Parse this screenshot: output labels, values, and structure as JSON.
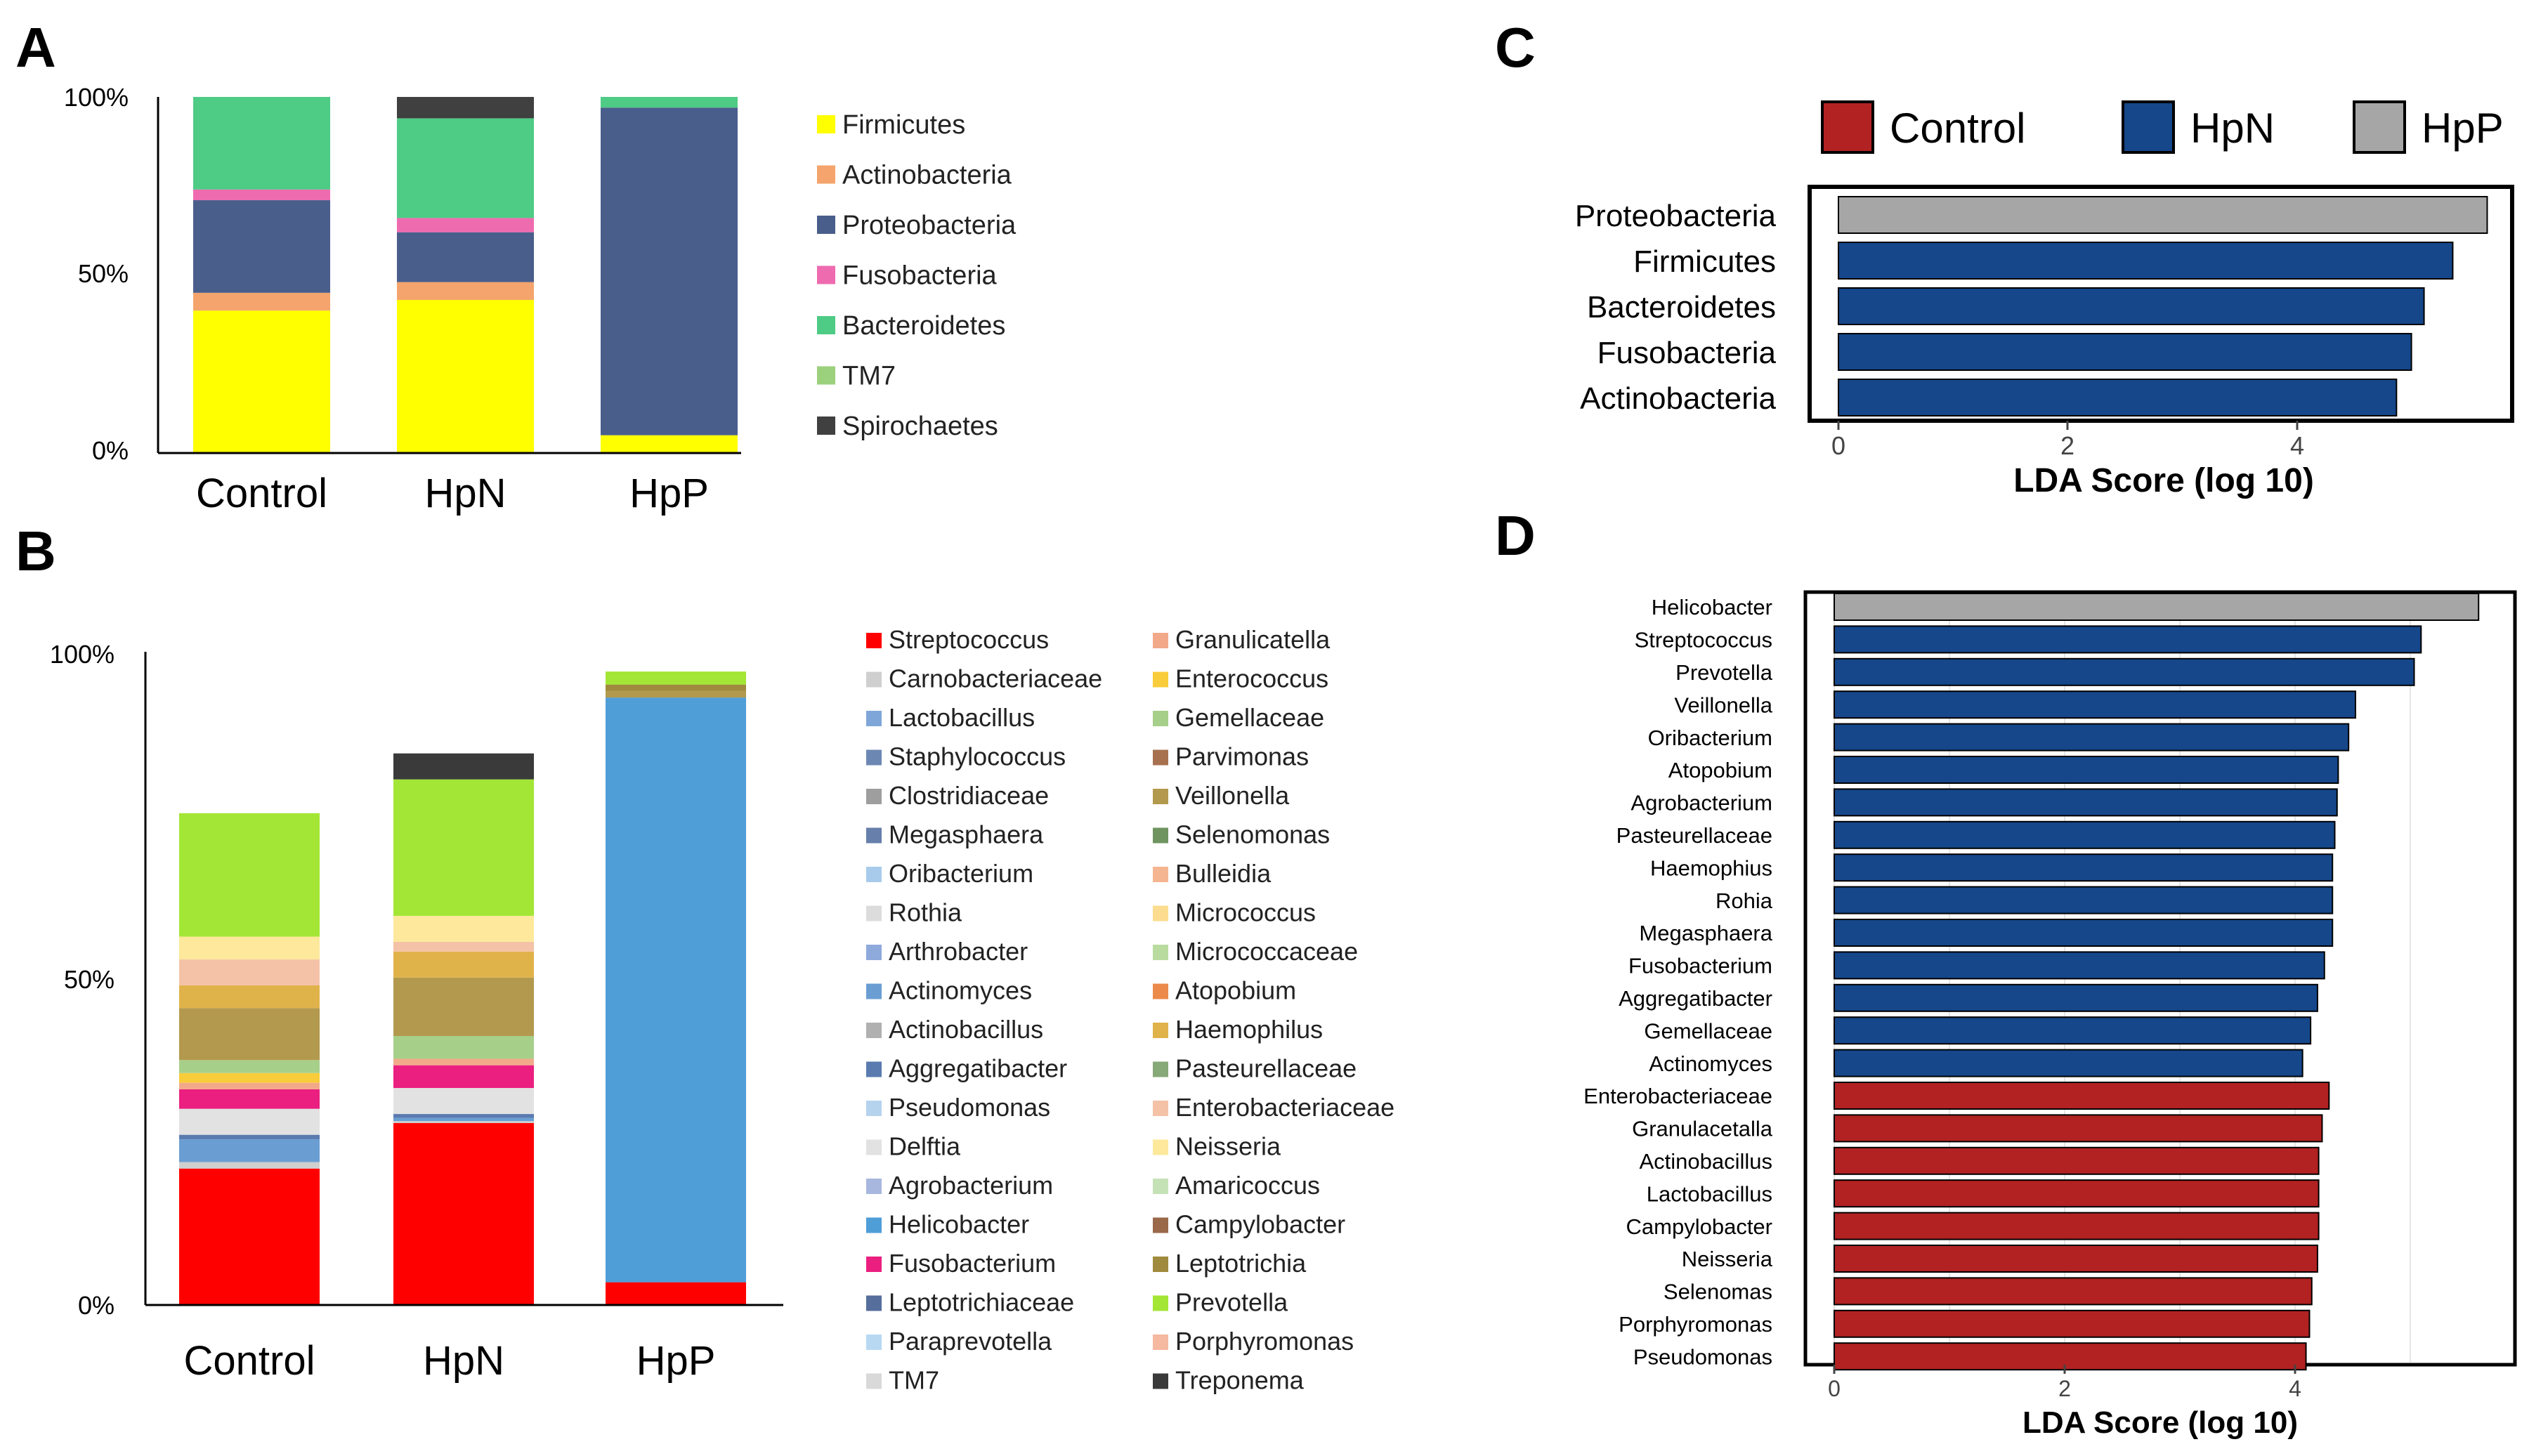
{
  "panels": {
    "a": "A",
    "b": "B",
    "c": "C",
    "d": "D"
  },
  "axis_ticks": {
    "a": [
      "100%",
      "50%",
      "0%"
    ],
    "b": [
      "100%",
      "50%",
      "0%"
    ],
    "c": [
      "0",
      "2",
      "4"
    ],
    "d": [
      "0",
      "2",
      "4"
    ]
  },
  "chart_data": [
    {
      "id": "A",
      "type": "bar",
      "stacked": true,
      "title": "",
      "xlabel": "",
      "ylabel": "",
      "ylim": [
        0,
        100
      ],
      "categories": [
        "Control",
        "HpN",
        "HpP"
      ],
      "series": [
        {
          "name": "Firmicutes",
          "color": "#ffff00",
          "values": [
            40,
            43,
            5
          ]
        },
        {
          "name": "Actinobacteria",
          "color": "#f4a46c",
          "values": [
            5,
            5,
            0
          ]
        },
        {
          "name": "Proteobacteria",
          "color": "#4a5e8c",
          "values": [
            26,
            14,
            92
          ]
        },
        {
          "name": "Fusobacteria",
          "color": "#ef6bb0",
          "values": [
            3,
            4,
            0
          ]
        },
        {
          "name": "Bacteroidetes",
          "color": "#4ecb85",
          "values": [
            26,
            28,
            3
          ]
        },
        {
          "name": "TM7",
          "color": "#9bd07c",
          "values": [
            0,
            0,
            0
          ]
        },
        {
          "name": "Spirochaetes",
          "color": "#404040",
          "values": [
            0,
            6,
            0
          ]
        }
      ]
    },
    {
      "id": "B",
      "type": "bar",
      "stacked": true,
      "title": "",
      "xlabel": "",
      "ylabel": "",
      "ylim": [
        0,
        100
      ],
      "categories": [
        "Control",
        "HpN",
        "HpP"
      ],
      "series": [
        {
          "name": "Streptococcus",
          "color": "#ff0000",
          "values": [
            21,
            28,
            3.5
          ]
        },
        {
          "name": "Carnobacteriaceae",
          "color": "#cfcfcf",
          "values": [
            1,
            0.3,
            0
          ]
        },
        {
          "name": "Lactobacillus",
          "color": "#7fa6d8",
          "values": [
            0,
            0,
            0
          ]
        },
        {
          "name": "Staphylococcus",
          "color": "#6d87b3",
          "values": [
            0,
            0,
            0
          ]
        },
        {
          "name": "Clostridiaceae",
          "color": "#9e9e9e",
          "values": [
            0,
            0,
            0
          ]
        },
        {
          "name": "Megasphaera",
          "color": "#667fab",
          "values": [
            0,
            0,
            0
          ]
        },
        {
          "name": "Oribacterium",
          "color": "#a8cbec",
          "values": [
            0,
            0,
            0
          ]
        },
        {
          "name": "Rothia",
          "color": "#dcdcdc",
          "values": [
            0,
            0,
            0
          ]
        },
        {
          "name": "Arthrobacter",
          "color": "#8ea9dc",
          "values": [
            0,
            0,
            0
          ]
        },
        {
          "name": "Actinomyces",
          "color": "#6a9ed3",
          "values": [
            3.5,
            0.5,
            0
          ]
        },
        {
          "name": "Actinobacillus",
          "color": "#b0b0b0",
          "values": [
            0,
            0,
            0
          ]
        },
        {
          "name": "Aggregatibacter",
          "color": "#5a7bb0",
          "values": [
            0.7,
            0.6,
            0
          ]
        },
        {
          "name": "Pseudomonas",
          "color": "#b6d3ee",
          "values": [
            0,
            0,
            0
          ]
        },
        {
          "name": "Delftia",
          "color": "#e2e2e2",
          "values": [
            4,
            4,
            0
          ]
        },
        {
          "name": "Agrobacterium",
          "color": "#a7b7de",
          "values": [
            0,
            0,
            0
          ]
        },
        {
          "name": "Helicobacter",
          "color": "#4f9ed8",
          "values": [
            0,
            0,
            90
          ]
        },
        {
          "name": "Fusobacterium",
          "color": "#ea1f7f",
          "values": [
            3,
            3.5,
            0
          ]
        },
        {
          "name": "Leptotrichiaceae",
          "color": "#566e9c",
          "values": [
            0,
            0,
            0
          ]
        },
        {
          "name": "Paraprevotella",
          "color": "#b8d8f2",
          "values": [
            0,
            0,
            0
          ]
        },
        {
          "name": "TM7",
          "color": "#d9d9d9",
          "values": [
            0,
            0,
            0
          ]
        },
        {
          "name": "Granulicatella",
          "color": "#f2a98a",
          "values": [
            1,
            1,
            0
          ]
        },
        {
          "name": "Enterococcus",
          "color": "#f8cc3a",
          "values": [
            1.5,
            0,
            0
          ]
        },
        {
          "name": "Gemellaceae",
          "color": "#a6cf8a",
          "values": [
            2,
            3.5,
            0
          ]
        },
        {
          "name": "Parvimonas",
          "color": "#a77150",
          "values": [
            0,
            0,
            0
          ]
        },
        {
          "name": "Veillonella",
          "color": "#b3994d",
          "values": [
            8,
            9,
            1
          ]
        },
        {
          "name": "Selenomonas",
          "color": "#6f9460",
          "values": [
            0,
            0,
            0
          ]
        },
        {
          "name": "Bulleidia",
          "color": "#f5b590",
          "values": [
            0,
            0,
            0
          ]
        },
        {
          "name": "Micrococcus",
          "color": "#fcdc8e",
          "values": [
            0,
            0,
            0
          ]
        },
        {
          "name": "Micrococcaceae",
          "color": "#b9dba0",
          "values": [
            0,
            0,
            0
          ]
        },
        {
          "name": "Atopobium",
          "color": "#ec8a4b",
          "values": [
            0,
            0,
            0
          ]
        },
        {
          "name": "Haemophilus",
          "color": "#e0b24a",
          "values": [
            3.5,
            4,
            0
          ]
        },
        {
          "name": "Pasteurellaceae",
          "color": "#87a877",
          "values": [
            0,
            0,
            0
          ]
        },
        {
          "name": "Enterobacteriaceae",
          "color": "#f4c2a6",
          "values": [
            4,
            1.5,
            0
          ]
        },
        {
          "name": "Neisseria",
          "color": "#fde89b",
          "values": [
            3.5,
            4,
            0
          ]
        },
        {
          "name": "Amaricoccus",
          "color": "#c5e2b6",
          "values": [
            0,
            0,
            0
          ]
        },
        {
          "name": "Campylobacter",
          "color": "#99694a",
          "values": [
            0,
            0,
            0
          ]
        },
        {
          "name": "Leptotrichia",
          "color": "#a08a3e",
          "values": [
            0,
            0,
            1
          ]
        },
        {
          "name": "Prevotella",
          "color": "#a3e635",
          "values": [
            19,
            21,
            2
          ]
        },
        {
          "name": "Porphyromonas",
          "color": "#f5b8a0",
          "values": [
            0,
            0,
            0
          ]
        },
        {
          "name": "Treponema",
          "color": "#3a3a3a",
          "values": [
            0,
            4,
            0
          ]
        }
      ]
    },
    {
      "id": "C",
      "type": "bar",
      "orientation": "horizontal",
      "title": "",
      "xlabel": "LDA Score (log 10)",
      "ylabel": "",
      "xlim": [
        0,
        5.8
      ],
      "legend": [
        {
          "label": "Control",
          "color": "#b22222"
        },
        {
          "label": "HpN",
          "color": "#15478a"
        },
        {
          "label": "HpP",
          "color": "#a6a6a6"
        }
      ],
      "categories": [
        "Proteobacteria",
        "Firmicutes",
        "Bacteroidetes",
        "Fusobacteria",
        "Actinobacteria"
      ],
      "values": [
        5.65,
        5.35,
        5.1,
        4.99,
        4.86
      ],
      "groups": [
        "HpP",
        "HpN",
        "HpN",
        "HpN",
        "HpN"
      ]
    },
    {
      "id": "D",
      "type": "bar",
      "orientation": "horizontal",
      "title": "",
      "xlabel": "LDA Score (log 10)",
      "ylabel": "",
      "xlim": [
        0,
        5.8
      ],
      "categories": [
        "Helicobacter",
        "Streptococcus",
        "Prevotella",
        "Veillonella",
        "Oribacterium",
        "Atopobium",
        "Agrobacterium",
        "Pasteurellaceae",
        "Haemophius",
        "Rohia",
        "Megasphaera",
        "Fusobacterium",
        "Aggregatibacter",
        "Gemellaceae",
        "Actinomyces",
        "Enterobacteriaceae",
        "Granulacetalla",
        "Actinobacillus",
        "Lactobacillus",
        "Campylobacter",
        "Neisseria",
        "Selenomas",
        "Porphyromonas",
        "Pseudomonas"
      ],
      "values": [
        5.6,
        5.1,
        5.04,
        4.53,
        4.47,
        4.38,
        4.37,
        4.35,
        4.33,
        4.33,
        4.33,
        4.26,
        4.2,
        4.14,
        4.07,
        4.3,
        4.24,
        4.21,
        4.21,
        4.21,
        4.2,
        4.15,
        4.13,
        4.1
      ],
      "groups": [
        "HpP",
        "HpN",
        "HpN",
        "HpN",
        "HpN",
        "HpN",
        "HpN",
        "HpN",
        "HpN",
        "HpN",
        "HpN",
        "HpN",
        "HpN",
        "HpN",
        "HpN",
        "Control",
        "Control",
        "Control",
        "Control",
        "Control",
        "Control",
        "Control",
        "Control",
        "Control"
      ]
    }
  ]
}
